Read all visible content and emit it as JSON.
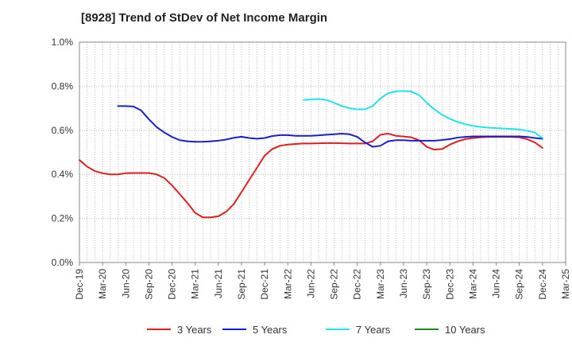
{
  "chart_data": {
    "type": "line",
    "title": "[8928]  Trend of StDev of Net Income Margin",
    "xlabel": "",
    "ylabel": "",
    "x_ticks": [
      "Dec-19",
      "Mar-20",
      "Jun-20",
      "Sep-20",
      "Dec-20",
      "Mar-21",
      "Jun-21",
      "Sep-21",
      "Dec-21",
      "Mar-22",
      "Jun-22",
      "Sep-22",
      "Dec-22",
      "Mar-23",
      "Jun-23",
      "Sep-23",
      "Dec-23",
      "Mar-24",
      "Jun-24",
      "Sep-24",
      "Dec-24",
      "Mar-25"
    ],
    "y_ticks": [
      "0.0%",
      "0.2%",
      "0.4%",
      "0.6%",
      "0.8%",
      "1.0%"
    ],
    "ylim": [
      0,
      1.0
    ],
    "x_range": [
      "2019-12",
      "2025-03"
    ],
    "grid": true,
    "legend_position": "bottom",
    "series": [
      {
        "name": "3 Years",
        "color": "#dd1f1f",
        "x": [
          "2019-12",
          "2020-01",
          "2020-02",
          "2020-03",
          "2020-04",
          "2020-05",
          "2020-06",
          "2020-07",
          "2020-08",
          "2020-09",
          "2020-10",
          "2020-11",
          "2020-12",
          "2021-01",
          "2021-02",
          "2021-03",
          "2021-04",
          "2021-05",
          "2021-06",
          "2021-07",
          "2021-08",
          "2021-09",
          "2021-10",
          "2021-11",
          "2021-12",
          "2022-01",
          "2022-02",
          "2022-03",
          "2022-04",
          "2022-05",
          "2022-06",
          "2022-07",
          "2022-08",
          "2022-09",
          "2022-10",
          "2022-11",
          "2022-12",
          "2023-01",
          "2023-02",
          "2023-03",
          "2023-04",
          "2023-05",
          "2023-06",
          "2023-07",
          "2023-08",
          "2023-09",
          "2023-10",
          "2023-11",
          "2023-12",
          "2024-01",
          "2024-02",
          "2024-03",
          "2024-04",
          "2024-05",
          "2024-06",
          "2024-07",
          "2024-08",
          "2024-09",
          "2024-10",
          "2024-11",
          "2024-12"
        ],
        "values": [
          0.465,
          0.435,
          0.415,
          0.405,
          0.4,
          0.4,
          0.405,
          0.406,
          0.406,
          0.406,
          0.4,
          0.383,
          0.35,
          0.31,
          0.27,
          0.225,
          0.205,
          0.205,
          0.21,
          0.23,
          0.265,
          0.32,
          0.375,
          0.43,
          0.485,
          0.515,
          0.53,
          0.535,
          0.538,
          0.54,
          0.54,
          0.541,
          0.542,
          0.542,
          0.541,
          0.54,
          0.54,
          0.54,
          0.55,
          0.58,
          0.585,
          0.575,
          0.572,
          0.568,
          0.555,
          0.525,
          0.512,
          0.515,
          0.535,
          0.55,
          0.56,
          0.565,
          0.568,
          0.57,
          0.57,
          0.57,
          0.57,
          0.568,
          0.56,
          0.545,
          0.52
        ]
      },
      {
        "name": "5 Years",
        "color": "#1620c8",
        "x": [
          "2020-05",
          "2020-06",
          "2020-07",
          "2020-08",
          "2020-09",
          "2020-10",
          "2020-11",
          "2020-12",
          "2021-01",
          "2021-02",
          "2021-03",
          "2021-04",
          "2021-05",
          "2021-06",
          "2021-07",
          "2021-08",
          "2021-09",
          "2021-10",
          "2021-11",
          "2021-12",
          "2022-01",
          "2022-02",
          "2022-03",
          "2022-04",
          "2022-05",
          "2022-06",
          "2022-07",
          "2022-08",
          "2022-09",
          "2022-10",
          "2022-11",
          "2022-12",
          "2023-01",
          "2023-02",
          "2023-03",
          "2023-04",
          "2023-05",
          "2023-06",
          "2023-07",
          "2023-08",
          "2023-09",
          "2023-10",
          "2023-11",
          "2023-12",
          "2024-01",
          "2024-02",
          "2024-03",
          "2024-04",
          "2024-05",
          "2024-06",
          "2024-07",
          "2024-08",
          "2024-09",
          "2024-10",
          "2024-11",
          "2024-12"
        ],
        "values": [
          0.71,
          0.71,
          0.708,
          0.69,
          0.65,
          0.615,
          0.59,
          0.57,
          0.555,
          0.55,
          0.548,
          0.548,
          0.55,
          0.553,
          0.558,
          0.566,
          0.571,
          0.565,
          0.562,
          0.565,
          0.574,
          0.578,
          0.578,
          0.575,
          0.575,
          0.575,
          0.577,
          0.58,
          0.582,
          0.585,
          0.582,
          0.57,
          0.545,
          0.525,
          0.53,
          0.55,
          0.555,
          0.555,
          0.553,
          0.553,
          0.553,
          0.553,
          0.556,
          0.56,
          0.567,
          0.57,
          0.572,
          0.572,
          0.572,
          0.572,
          0.572,
          0.572,
          0.572,
          0.57,
          0.565,
          0.562
        ]
      },
      {
        "name": "7 Years",
        "color": "#22e3e8",
        "x": [
          "2022-05",
          "2022-06",
          "2022-07",
          "2022-08",
          "2022-09",
          "2022-10",
          "2022-11",
          "2022-12",
          "2023-01",
          "2023-02",
          "2023-03",
          "2023-04",
          "2023-05",
          "2023-06",
          "2023-07",
          "2023-08",
          "2023-09",
          "2023-10",
          "2023-11",
          "2023-12",
          "2024-01",
          "2024-02",
          "2024-03",
          "2024-04",
          "2024-05",
          "2024-06",
          "2024-07",
          "2024-08",
          "2024-09",
          "2024-10",
          "2024-11",
          "2024-12"
        ],
        "values": [
          0.738,
          0.74,
          0.742,
          0.738,
          0.725,
          0.71,
          0.7,
          0.695,
          0.695,
          0.71,
          0.745,
          0.768,
          0.777,
          0.778,
          0.776,
          0.76,
          0.725,
          0.695,
          0.67,
          0.652,
          0.638,
          0.628,
          0.62,
          0.615,
          0.612,
          0.61,
          0.608,
          0.606,
          0.604,
          0.598,
          0.59,
          0.565
        ]
      },
      {
        "name": "10 Years",
        "color": "#1e8a1e",
        "x": [],
        "values": []
      }
    ]
  }
}
